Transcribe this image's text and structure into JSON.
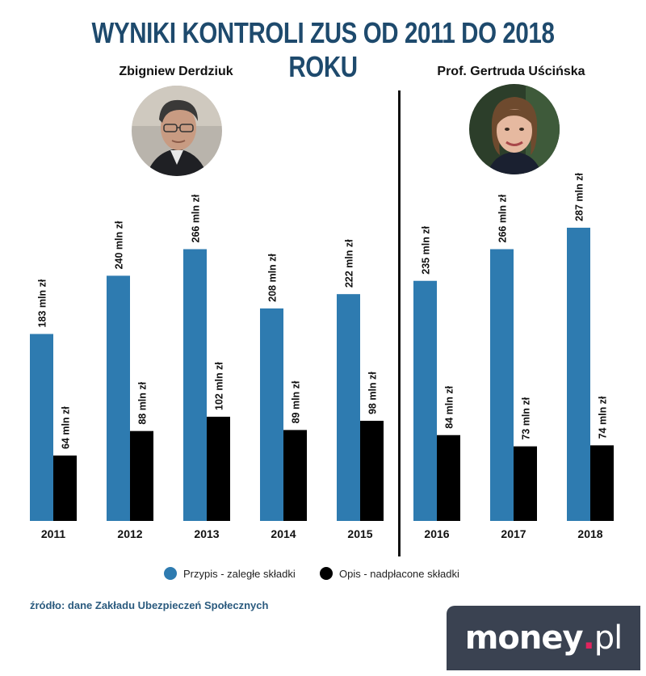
{
  "title": "WYNIKI KONTROLI ZUS OD 2011 DO 2018 ROKU",
  "people": [
    {
      "name": "Zbigniew Derdziuk"
    },
    {
      "name": "Prof. Gertruda Uścińska"
    }
  ],
  "legend": [
    {
      "label": "Przypis - zaległe składki",
      "color": "#2e7bb0"
    },
    {
      "label": "Opis - nadpłacone składki",
      "color": "#000000"
    }
  ],
  "source": "źródło: dane Zakładu Ubezpieczeń Społecznych",
  "brand": {
    "main": "money",
    "dot": ".",
    "suffix": "pl"
  },
  "chart_data": {
    "type": "bar",
    "categories": [
      "2011",
      "2012",
      "2013",
      "2014",
      "2015",
      "2016",
      "2017",
      "2018"
    ],
    "series": [
      {
        "name": "Przypis - zaległe składki",
        "color": "#2e7bb0",
        "values": [
          183,
          240,
          266,
          208,
          222,
          235,
          266,
          287
        ],
        "labels": [
          "183 mln zł",
          "240 mln zł",
          "266 mln zł",
          "208 mln zł",
          "222 mln zł",
          "235 mln zł",
          "266 mln zł",
          "287 mln zł"
        ]
      },
      {
        "name": "Opis - nadpłacone składki",
        "color": "#000000",
        "values": [
          64,
          88,
          102,
          89,
          98,
          84,
          73,
          74
        ],
        "labels": [
          "64 mln zł",
          "88 mln zł",
          "102 mln zł",
          "89 mln zł",
          "98 mln zł",
          "84 mln zł",
          "73 mln zł",
          "74 mln zł"
        ]
      }
    ],
    "title": "WYNIKI KONTROLI ZUS OD 2011 DO 2018 ROKU",
    "ylim": [
      0,
      287
    ],
    "grid": false,
    "legend_position": "bottom"
  }
}
